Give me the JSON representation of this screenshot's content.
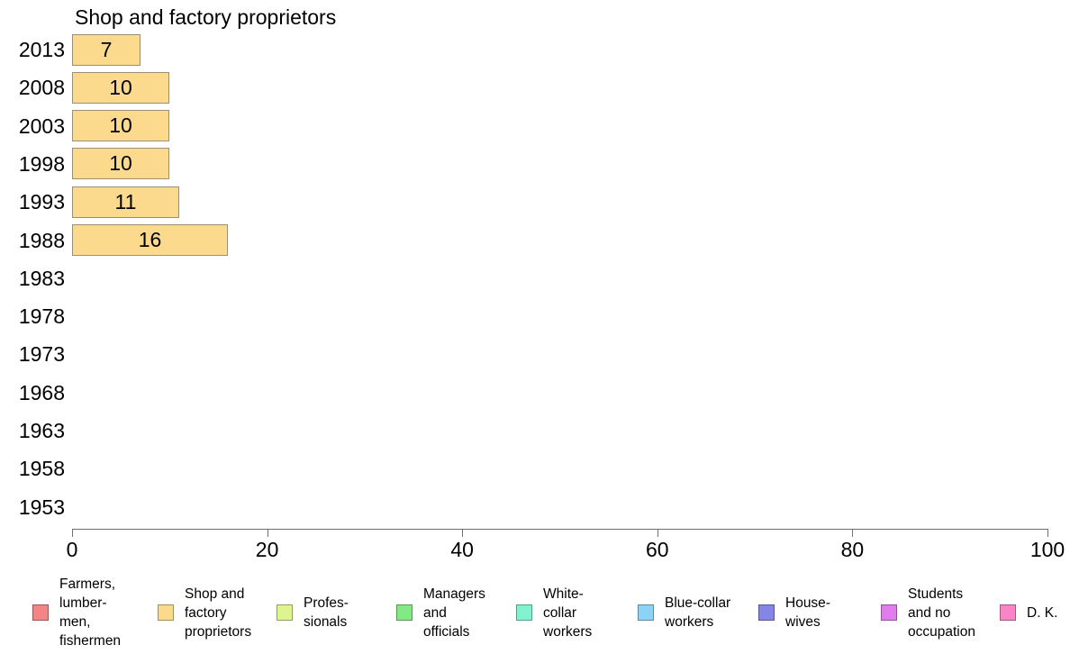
{
  "chart_data": {
    "type": "bar",
    "orientation": "horizontal",
    "title": "Shop and factory proprietors",
    "categories": [
      "2013",
      "2008",
      "2003",
      "1998",
      "1993",
      "1988",
      "1983",
      "1978",
      "1973",
      "1968",
      "1963",
      "1958",
      "1953"
    ],
    "values": [
      7,
      10,
      10,
      10,
      11,
      16,
      null,
      null,
      null,
      null,
      null,
      null,
      null
    ],
    "series_name": "Shop and factory proprietors",
    "bar_color": "#FBD98D",
    "bar_border_color": "#9a9078",
    "xlim": [
      0,
      100
    ],
    "xticks": [
      "0",
      "20",
      "40",
      "60",
      "80",
      "100"
    ],
    "xtick_values": [
      0,
      20,
      40,
      60,
      80,
      100
    ],
    "grid": false,
    "value_labels_shown": true,
    "legend_position": "bottom",
    "legend": [
      {
        "label": "Farmers,\nlumber-\nmen,\nfishermen",
        "color": "#F28585"
      },
      {
        "label": "Shop and\nfactory\nproprietors",
        "color": "#FBD98D"
      },
      {
        "label": "Profes-\nsionals",
        "color": "#DDF58F"
      },
      {
        "label": "Managers\nand\nofficials",
        "color": "#82EA82"
      },
      {
        "label": "White-\ncollar\nworkers",
        "color": "#7FF3D0"
      },
      {
        "label": "Blue-collar\nworkers",
        "color": "#8CD3F8"
      },
      {
        "label": "House-\nwives",
        "color": "#8585E6"
      },
      {
        "label": "Students\nand no\noccupation",
        "color": "#E07CEC"
      },
      {
        "label": "D. K.",
        "color": "#FB84C6"
      }
    ]
  }
}
